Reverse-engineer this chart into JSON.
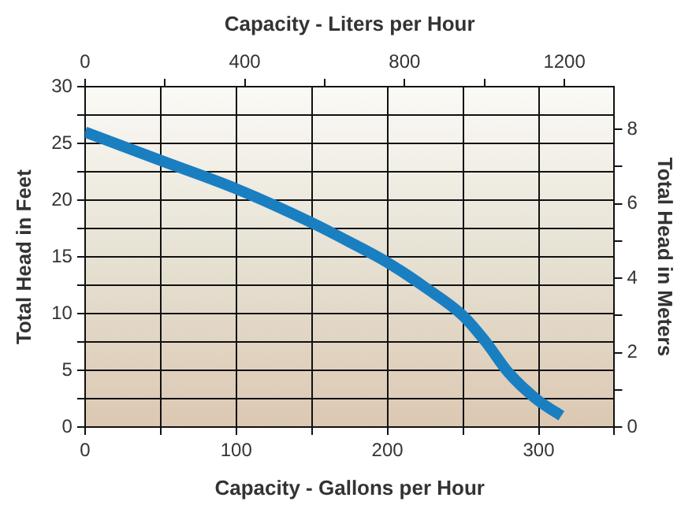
{
  "chart_data": {
    "type": "line",
    "xlabel": "Capacity - Gallons per Hour",
    "x2label": "Capacity - Liters per Hour",
    "ylabel": "Total Head in Feet",
    "y2label": "Total Head in Meters",
    "xlim": [
      0,
      350
    ],
    "xticks": [
      0,
      {
        "value": 50,
        "label": null
      },
      100,
      {
        "value": 150,
        "label": null
      },
      200,
      {
        "value": 250,
        "label": null
      },
      300,
      {
        "value": 350,
        "label": null
      }
    ],
    "x2lim": [
      0,
      1325
    ],
    "x2ticks": [
      0,
      {
        "value": 200,
        "label": null
      },
      400,
      {
        "value": 600,
        "label": null
      },
      800,
      {
        "value": 1000,
        "label": null
      },
      1200
    ],
    "ylim": [
      0,
      30
    ],
    "yticks": [
      0,
      {
        "value": 2.5,
        "label": null
      },
      5,
      {
        "value": 7.5,
        "label": null
      },
      10,
      {
        "value": 12.5,
        "label": null
      },
      15,
      {
        "value": 17.5,
        "label": null
      },
      20,
      {
        "value": 22.5,
        "label": null
      },
      25,
      {
        "value": 27.5,
        "label": null
      },
      30
    ],
    "y2lim": [
      0,
      9.144
    ],
    "y2ticks": [
      0,
      {
        "value": 1,
        "label": null
      },
      2,
      {
        "value": 3,
        "label": null
      },
      4,
      {
        "value": 5,
        "label": null
      },
      6,
      {
        "value": 7,
        "label": null
      },
      8
    ],
    "grid": true,
    "legend": false,
    "marker": "none",
    "line_style": "solid",
    "series": [
      {
        "color": "#1a7fc1",
        "x": [
          0,
          50,
          100,
          150,
          175,
          200,
          225,
          250,
          265,
          280,
          300,
          315
        ],
        "values": [
          26,
          23.5,
          21,
          18,
          16.3,
          14.5,
          12.3,
          9.8,
          7.5,
          4.8,
          2.3,
          1
        ]
      }
    ]
  }
}
